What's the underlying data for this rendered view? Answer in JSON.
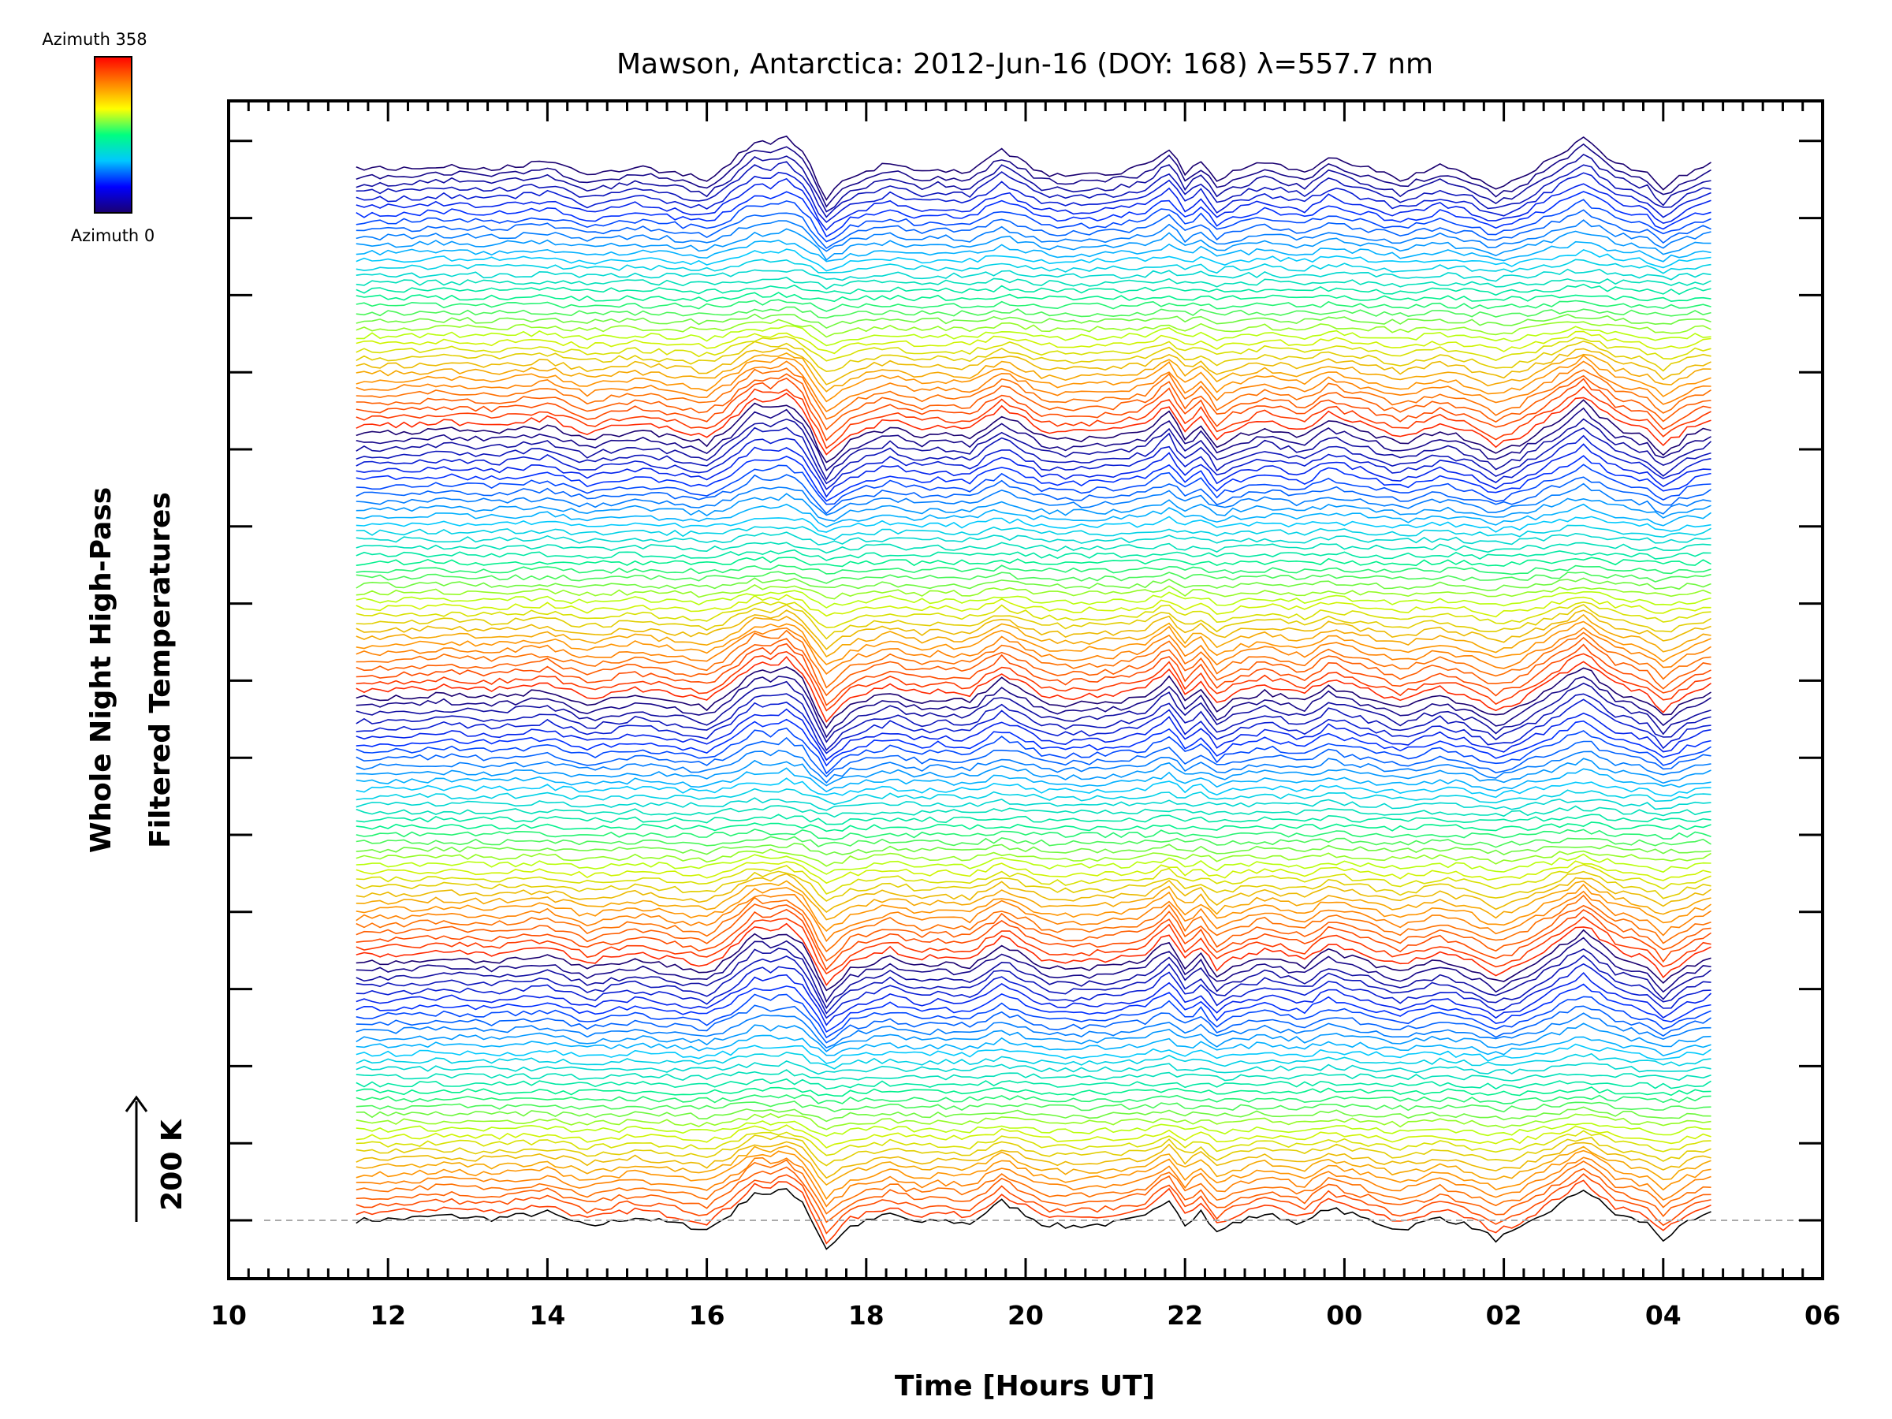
{
  "chart_data": {
    "type": "line",
    "title": "Mawson, Antarctica: 2012-Jun-16 (DOY: 168) λ=557.7 nm",
    "xlabel": "Time [Hours UT]",
    "ylabel_line1": "Whole Night High-Pass",
    "ylabel_line2": "Filtered Temperatures",
    "scale_label": "200 K",
    "xlim": [
      10,
      30
    ],
    "x_tick_labels": [
      "10",
      "12",
      "14",
      "16",
      "18",
      "20",
      "22",
      "00",
      "02",
      "04",
      "06"
    ],
    "grid": false,
    "legend": {
      "placement": "top-left",
      "type": "colorbar",
      "max_label": "Azimuth 358",
      "min_label": "Azimuth 0",
      "colors": [
        "#1a0070",
        "#0000ff",
        "#00c8ff",
        "#00ff80",
        "#ffff00",
        "#ff8000",
        "#ff0000"
      ]
    },
    "series_count": 140,
    "azimuth_range": [
      0,
      358
    ],
    "time_range": [
      11.6,
      28.6
    ],
    "features": {
      "x": [
        11.6,
        12.2,
        12.7,
        13.3,
        14.0,
        14.5,
        15.1,
        15.6,
        16.0,
        16.3,
        16.6,
        16.8,
        17.0,
        17.2,
        17.5,
        17.8,
        18.3,
        18.7,
        18.9,
        19.3,
        19.7,
        20.0,
        20.2,
        20.5,
        21.1,
        21.5,
        21.8,
        22.0,
        22.2,
        22.4,
        22.6,
        23.0,
        23.5,
        23.8,
        24.2,
        24.7,
        25.2,
        25.6,
        25.9,
        26.2,
        26.7,
        27.0,
        27.4,
        27.8,
        28.0,
        28.3,
        28.6
      ],
      "baseline": [
        0,
        0.05,
        0.15,
        0.05,
        0.25,
        -0.2,
        0.1,
        -0.1,
        -0.3,
        0.2,
        0.9,
        0.8,
        1.0,
        0.6,
        -0.9,
        -0.2,
        0.2,
        -0.1,
        0.0,
        -0.1,
        0.6,
        0.2,
        -0.1,
        -0.2,
        -0.1,
        0.1,
        0.7,
        -0.1,
        0.3,
        -0.4,
        -0.1,
        0.2,
        -0.1,
        0.4,
        0.1,
        -0.3,
        0.1,
        -0.2,
        -0.6,
        -0.3,
        0.5,
        1.0,
        0.2,
        -0.1,
        -0.6,
        -0.1,
        0.2
      ]
    }
  }
}
